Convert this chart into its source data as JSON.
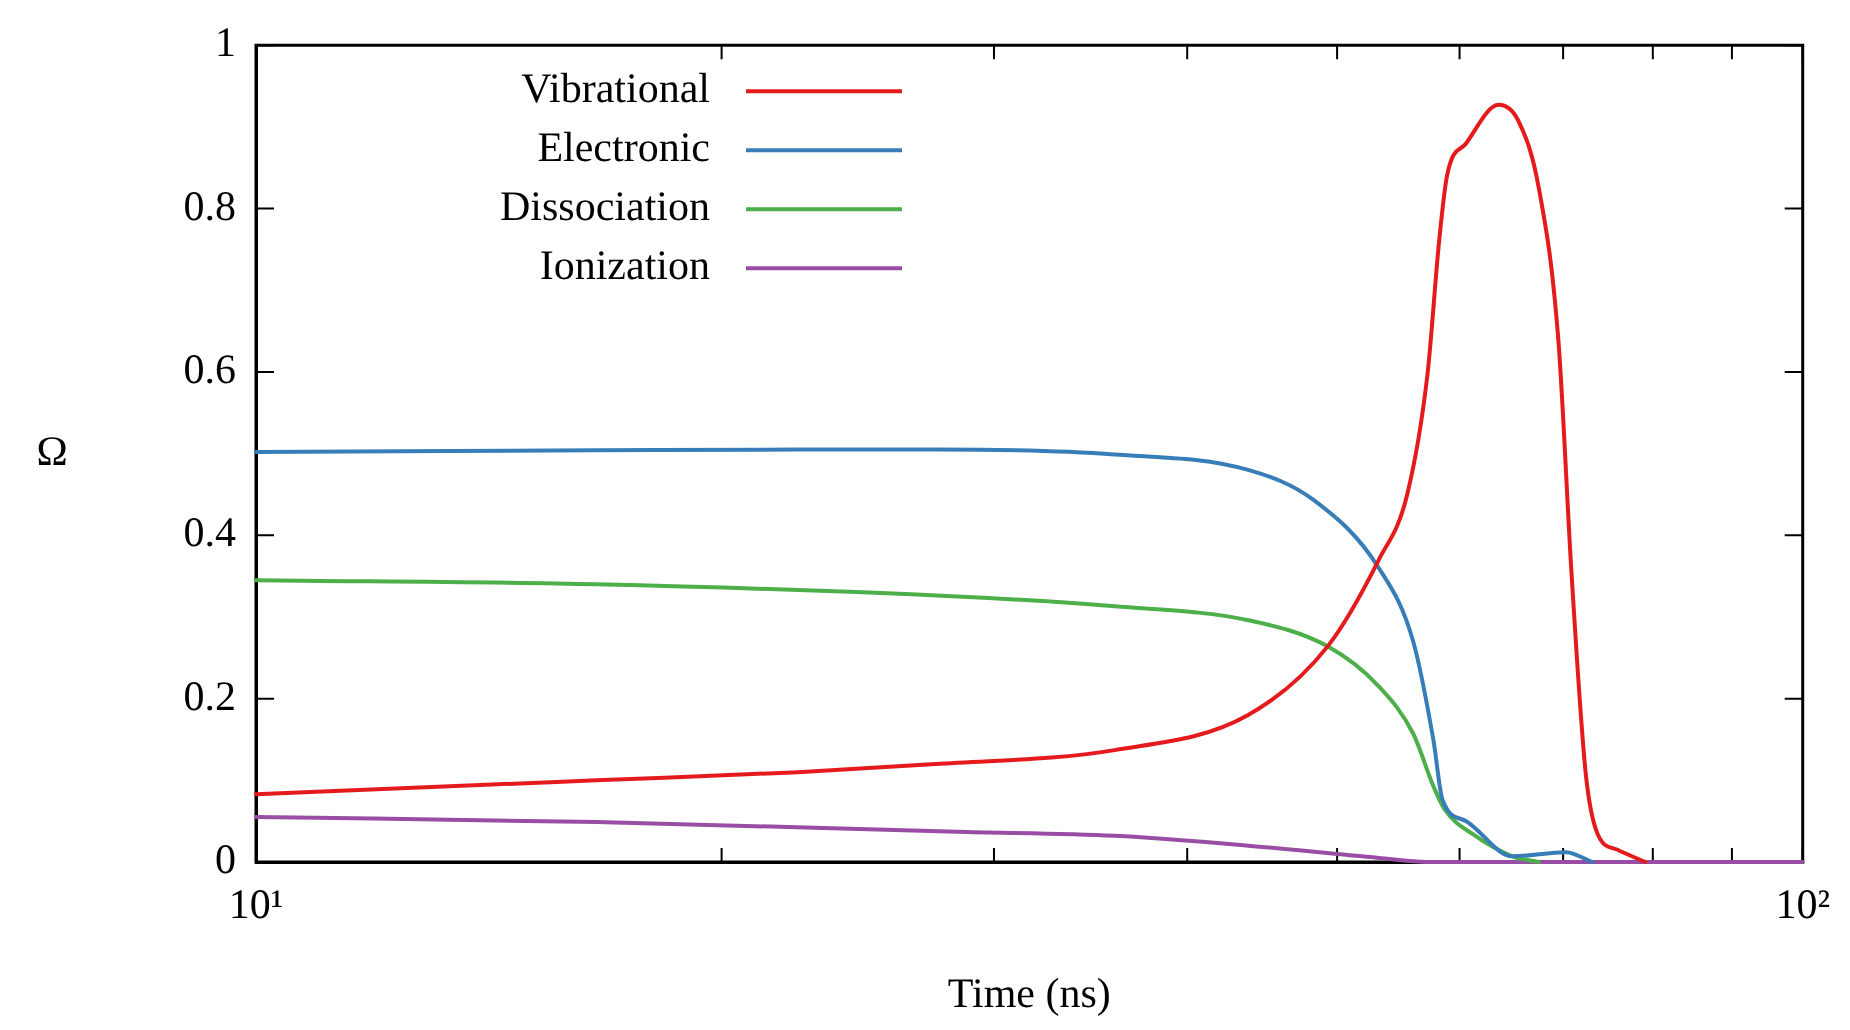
{
  "chart_data": {
    "type": "line",
    "xlabel": "Time (ns)",
    "ylabel": "Ω",
    "log": "x",
    "xlim": [
      10,
      100
    ],
    "xticks": [
      {
        "value": 10,
        "label": "10¹"
      },
      {
        "value": 20,
        "label": null
      },
      {
        "value": 30,
        "label": null
      },
      {
        "value": 40,
        "label": null
      },
      {
        "value": 50,
        "label": null
      },
      {
        "value": 60,
        "label": null
      },
      {
        "value": 70,
        "label": null
      },
      {
        "value": 80,
        "label": null
      },
      {
        "value": 90,
        "label": null
      },
      {
        "value": 100,
        "label": "10²"
      }
    ],
    "ylim": [
      0,
      1
    ],
    "yticks": [
      0,
      0.2,
      0.4,
      0.6,
      0.8,
      1
    ],
    "grid": false,
    "legend": "top left",
    "marker": "none",
    "line_style": "solid",
    "series": [
      {
        "name": "Vibrational",
        "color": "#e41a1c",
        "x": [
          10,
          16.6,
          22.4,
          27.5,
          35.9,
          43.8,
          49.3,
          53.2,
          55.5,
          57.2,
          58.2,
          58.9,
          60.6,
          63.6,
          65.5,
          67.5,
          69.5,
          70.9,
          72.4,
          73.7,
          75.9,
          79.1
        ],
        "values": [
          0.083,
          0.1,
          0.11,
          0.12,
          0.137,
          0.18,
          0.264,
          0.37,
          0.45,
          0.597,
          0.76,
          0.841,
          0.88,
          0.927,
          0.907,
          0.826,
          0.64,
          0.35,
          0.108,
          0.034,
          0.015,
          0
        ]
      },
      {
        "name": "Electronic",
        "color": "#377eb8",
        "x": [
          10,
          16.6,
          22.4,
          27.5,
          35.9,
          43.8,
          48.3,
          53.2,
          56.0,
          57.7,
          58.5,
          60.6,
          64.9,
          70.3,
          73.1
        ],
        "values": [
          0.502,
          0.504,
          0.505,
          0.505,
          0.499,
          0.48,
          0.443,
          0.36,
          0.27,
          0.15,
          0.076,
          0.05,
          0.007,
          0.012,
          0
        ]
      },
      {
        "name": "Dissociation",
        "color": "#4daf4a",
        "x": [
          10,
          16.6,
          28.4,
          35.9,
          43.8,
          49.3,
          53.2,
          56.0,
          57.7,
          58.7,
          61.2,
          64.9,
          67.5
        ],
        "values": [
          0.345,
          0.34,
          0.325,
          0.313,
          0.296,
          0.264,
          0.215,
          0.157,
          0.093,
          0.064,
          0.034,
          0.007,
          0
        ]
      },
      {
        "name": "Ionization",
        "color": "#984ea3",
        "x": [
          10,
          16.6,
          28.4,
          35.9,
          43.8,
          53.2,
          57.7,
          100
        ],
        "values": [
          0.055,
          0.049,
          0.037,
          0.032,
          0.02,
          0.005,
          0,
          0
        ]
      }
    ]
  }
}
